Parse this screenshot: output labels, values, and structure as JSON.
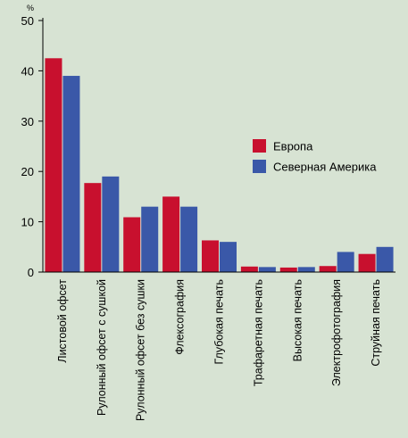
{
  "chart_data": {
    "type": "bar",
    "ylabel": "%",
    "ylim": [
      0,
      50
    ],
    "yticks": [
      0,
      10,
      20,
      30,
      40,
      50
    ],
    "grid": false,
    "legend_position": "right",
    "categories": [
      "Листовой офсет",
      "Рулонный офсет с сушкой",
      "Рулонный офсет без сушки",
      "Флексография",
      "Глубокая печать",
      "Трафаретная печать",
      "Высокая печать",
      "Электрофотография",
      "Струйная печать"
    ],
    "series": [
      {
        "name": "Европа",
        "color": "#c8102e",
        "values": [
          42.5,
          17.7,
          10.9,
          15.0,
          6.3,
          1.1,
          0.9,
          1.2,
          3.6
        ]
      },
      {
        "name": "Северная Америка",
        "color": "#3a58a8",
        "values": [
          39.0,
          19.0,
          13.0,
          13.0,
          6.0,
          1.0,
          1.0,
          4.0,
          5.0
        ]
      }
    ]
  }
}
